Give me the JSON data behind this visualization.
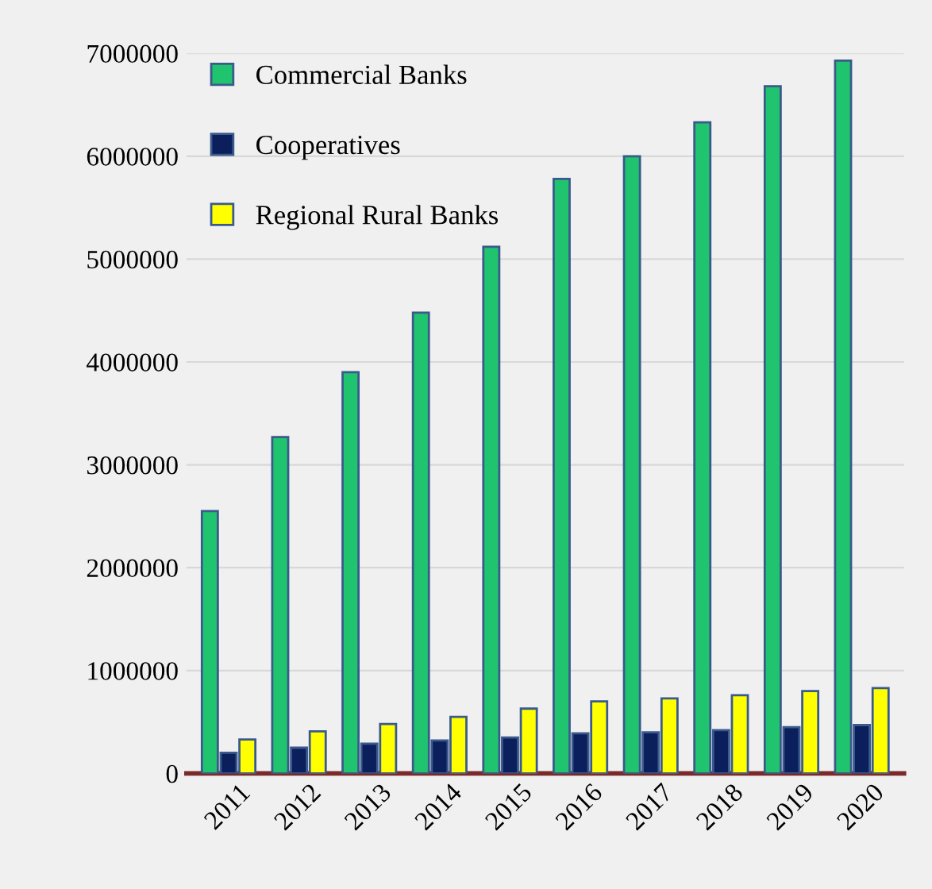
{
  "chart_data": {
    "type": "bar",
    "categories": [
      "2011",
      "2012",
      "2013",
      "2014",
      "2015",
      "2016",
      "2017",
      "2018",
      "2019",
      "2020"
    ],
    "series": [
      {
        "name": "Commercial Banks",
        "color": "#21c46e",
        "values": [
          2550000,
          3270000,
          3900000,
          4480000,
          5120000,
          5780000,
          6000000,
          6330000,
          6680000,
          6930000
        ]
      },
      {
        "name": "Cooperatives",
        "color": "#0b1f5c",
        "values": [
          200000,
          250000,
          290000,
          320000,
          350000,
          390000,
          400000,
          420000,
          450000,
          470000
        ]
      },
      {
        "name": "Regional Rural Banks",
        "color": "#ffff00",
        "values": [
          330000,
          410000,
          480000,
          550000,
          630000,
          700000,
          730000,
          760000,
          800000,
          830000
        ]
      }
    ],
    "ylim": [
      0,
      7000000
    ],
    "yticks": [
      0,
      1000000,
      2000000,
      3000000,
      4000000,
      5000000,
      6000000,
      7000000
    ],
    "grid": "y",
    "legend": "top left"
  }
}
